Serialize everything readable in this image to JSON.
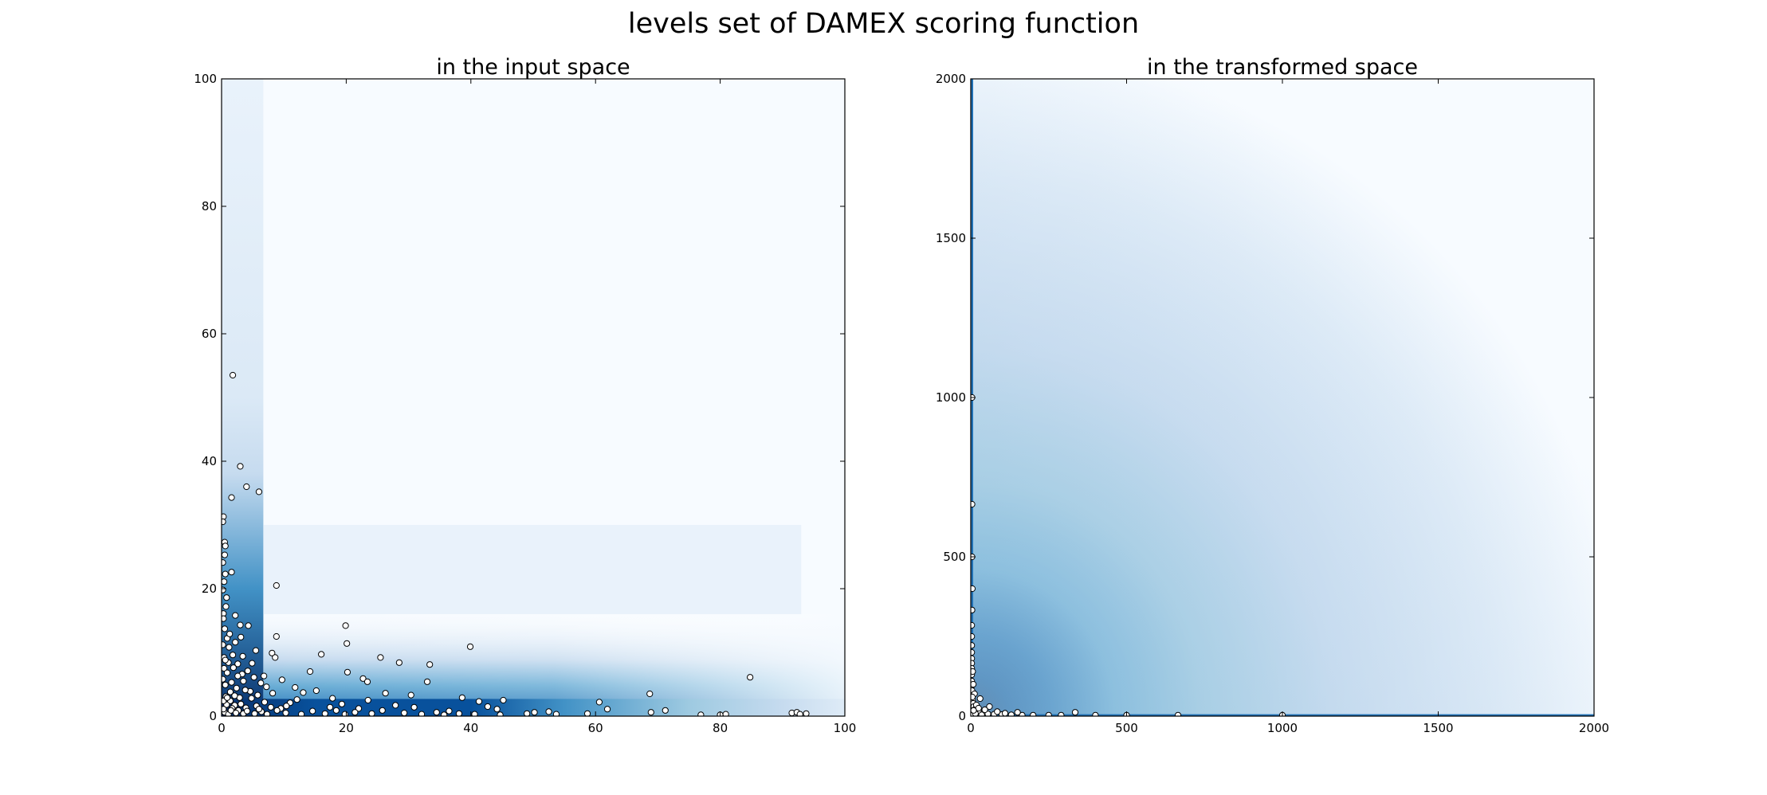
{
  "figure": {
    "suptitle": "levels set of DAMEX scoring function"
  },
  "chart_data": [
    {
      "type": "heatmap",
      "title": "in the input space",
      "xlabel": "",
      "ylabel": "",
      "xlim": [
        0,
        100
      ],
      "ylim": [
        0,
        100
      ],
      "xticks": [
        0,
        20,
        40,
        60,
        80,
        100
      ],
      "yticks": [
        0,
        20,
        40,
        60,
        80,
        100
      ],
      "colormap": "Blues",
      "colors": {
        "dark": "#08306b",
        "light": "#f7fbff",
        "marker_fill": "#ffffff",
        "marker_edge": "#000000"
      },
      "points": [
        [
          1.8,
          53.5
        ],
        [
          3,
          39.2
        ],
        [
          4,
          36
        ],
        [
          6,
          35.2
        ],
        [
          1.6,
          34.3
        ],
        [
          0.3,
          31.3
        ],
        [
          0.2,
          30.5
        ],
        [
          0.5,
          27.3
        ],
        [
          0.6,
          26.7
        ],
        [
          0.5,
          25.3
        ],
        [
          1.6,
          22.6
        ],
        [
          0.6,
          22.3
        ],
        [
          8.8,
          20.5
        ],
        [
          0.8,
          18.6
        ],
        [
          2.2,
          15.8
        ],
        [
          0.3,
          16.1
        ],
        [
          3,
          14.3
        ],
        [
          4.3,
          14.2
        ],
        [
          19.9,
          14.2
        ],
        [
          8.8,
          12.5
        ],
        [
          3.1,
          12.4
        ],
        [
          20.1,
          11.4
        ],
        [
          39.9,
          10.9
        ],
        [
          16,
          9.7
        ],
        [
          25.5,
          9.2
        ],
        [
          8.1,
          9.9
        ],
        [
          8.6,
          9.2
        ],
        [
          28.5,
          8.4
        ],
        [
          33.4,
          8.1
        ],
        [
          20.2,
          6.9
        ],
        [
          14.2,
          7
        ],
        [
          22.7,
          5.9
        ],
        [
          23.4,
          5.4
        ],
        [
          33,
          5.4
        ],
        [
          38.6,
          2.9
        ],
        [
          41.3,
          2.3
        ],
        [
          45.2,
          2.5
        ],
        [
          84.8,
          6.1
        ],
        [
          68.7,
          3.5
        ],
        [
          60.6,
          2.2
        ],
        [
          61.9,
          1.1
        ],
        [
          71.2,
          0.9
        ],
        [
          68.9,
          0.6
        ],
        [
          52.5,
          0.7
        ],
        [
          49,
          0.4
        ],
        [
          50.2,
          0.6
        ],
        [
          53.7,
          0.3
        ],
        [
          58.7,
          0.4
        ],
        [
          76.9,
          0.2
        ],
        [
          80,
          0.2
        ],
        [
          80.9,
          0.3
        ],
        [
          91.5,
          0.5
        ],
        [
          92.3,
          0.6
        ],
        [
          93.8,
          0.4
        ],
        [
          92.8,
          0.3
        ],
        [
          42.7,
          1.5
        ],
        [
          44.2,
          1.1
        ],
        [
          36.5,
          0.8
        ],
        [
          34.5,
          0.6
        ],
        [
          30.9,
          1.4
        ],
        [
          27.9,
          1.7
        ],
        [
          26.3,
          3.6
        ],
        [
          22,
          1.2
        ],
        [
          17.4,
          1.4
        ],
        [
          15.2,
          4
        ],
        [
          13.1,
          3.7
        ],
        [
          12.1,
          2.6
        ],
        [
          11,
          2.1
        ],
        [
          10.4,
          1.6
        ],
        [
          9.5,
          1.2
        ],
        [
          8.2,
          3.6
        ],
        [
          7.2,
          4.6
        ],
        [
          6.3,
          5.2
        ],
        [
          5.2,
          6.1
        ],
        [
          4.2,
          7.1
        ],
        [
          3.3,
          6.6
        ],
        [
          2.6,
          8.2
        ],
        [
          1.8,
          9.6
        ],
        [
          1.2,
          10.8
        ],
        [
          0.9,
          12.2
        ],
        [
          0.5,
          13.7
        ],
        [
          0.3,
          15.3
        ],
        [
          0.2,
          19.8
        ],
        [
          0.4,
          21.1
        ],
        [
          0.2,
          24.1
        ],
        [
          0.7,
          3.1
        ],
        [
          1.4,
          2.4
        ],
        [
          2.1,
          1.7
        ],
        [
          2.7,
          0.9
        ],
        [
          3.5,
          0.4
        ],
        [
          0.5,
          0.6
        ],
        [
          1.1,
          0.3
        ],
        [
          1.7,
          1.2
        ],
        [
          0.8,
          1.8
        ],
        [
          0.3,
          2.4
        ],
        [
          4.8,
          2.8
        ],
        [
          5.6,
          1.6
        ],
        [
          6.4,
          0.7
        ],
        [
          7.3,
          0.3
        ],
        [
          3.9,
          1.3
        ],
        [
          4.6,
          3.9
        ],
        [
          2.4,
          4.4
        ],
        [
          1.6,
          5.3
        ],
        [
          0.6,
          4.9
        ],
        [
          0.4,
          7.5
        ],
        [
          1.1,
          8.4
        ],
        [
          2.9,
          2.9
        ],
        [
          3.5,
          5.5
        ],
        [
          5.8,
          3.3
        ],
        [
          6.9,
          2.2
        ],
        [
          8.9,
          0.9
        ],
        [
          10.3,
          0.5
        ],
        [
          12.8,
          0.3
        ],
        [
          14.6,
          0.8
        ],
        [
          16.6,
          0.4
        ],
        [
          18.4,
          0.9
        ],
        [
          19.8,
          0.3
        ],
        [
          21.4,
          0.6
        ],
        [
          24.1,
          0.4
        ],
        [
          25.8,
          0.9
        ],
        [
          29.3,
          0.5
        ],
        [
          32.1,
          0.3
        ],
        [
          35.7,
          0.2
        ],
        [
          38.1,
          0.4
        ],
        [
          40.6,
          0.3
        ],
        [
          44.7,
          0.2
        ],
        [
          0.2,
          5.8
        ],
        [
          0.9,
          6.8
        ],
        [
          1.9,
          7.6
        ],
        [
          2.2,
          11.6
        ],
        [
          0.4,
          9.2
        ],
        [
          1.3,
          12.9
        ],
        [
          0.2,
          11.2
        ],
        [
          0.7,
          17.2
        ],
        [
          3.4,
          9.4
        ],
        [
          4.9,
          8.3
        ],
        [
          5.5,
          10.3
        ],
        [
          6.8,
          6.3
        ],
        [
          9.7,
          5.7
        ],
        [
          11.8,
          4.5
        ],
        [
          17.8,
          2.8
        ],
        [
          19.3,
          1.9
        ],
        [
          23.5,
          2.5
        ],
        [
          30.4,
          3.3
        ],
        [
          1.5,
          0.9
        ],
        [
          2.3,
          0.5
        ],
        [
          4.1,
          0.8
        ],
        [
          5.3,
          0.4
        ],
        [
          6,
          1.1
        ],
        [
          7.9,
          1.4
        ],
        [
          0.9,
          2.9
        ],
        [
          1.4,
          3.8
        ],
        [
          2.1,
          3.2
        ],
        [
          3.1,
          1.9
        ],
        [
          0.3,
          1.1
        ],
        [
          0.6,
          8.8
        ],
        [
          2.6,
          6.3
        ],
        [
          3.8,
          4.1
        ]
      ]
    },
    {
      "type": "heatmap",
      "title": "in the transformed space",
      "xlabel": "",
      "ylabel": "",
      "xlim": [
        0,
        2000
      ],
      "ylim": [
        0,
        2000
      ],
      "xticks": [
        0,
        500,
        1000,
        1500,
        2000
      ],
      "yticks": [
        0,
        500,
        1000,
        1500,
        2000
      ],
      "colormap": "Blues",
      "colors": {
        "dark": "#08306b",
        "light": "#f7fbff",
        "marker_fill": "#ffffff",
        "marker_edge": "#000000"
      },
      "points": [
        [
          4,
          1000
        ],
        [
          4,
          665
        ],
        [
          4,
          500
        ],
        [
          5,
          400
        ],
        [
          4,
          333
        ],
        [
          3,
          285
        ],
        [
          3,
          250
        ],
        [
          3,
          222
        ],
        [
          3,
          200
        ],
        [
          3,
          181
        ],
        [
          3,
          166
        ],
        [
          3,
          150
        ],
        [
          3,
          130
        ],
        [
          3,
          110
        ],
        [
          3,
          95
        ],
        [
          4,
          80
        ],
        [
          5,
          65
        ],
        [
          6,
          50
        ],
        [
          8,
          40
        ],
        [
          10,
          30
        ],
        [
          14,
          22
        ],
        [
          20,
          16
        ],
        [
          28,
          12
        ],
        [
          40,
          9
        ],
        [
          55,
          7
        ],
        [
          75,
          6
        ],
        [
          100,
          5
        ],
        [
          130,
          4
        ],
        [
          165,
          3
        ],
        [
          200,
          3
        ],
        [
          250,
          3
        ],
        [
          290,
          3
        ],
        [
          335,
          12
        ],
        [
          400,
          3
        ],
        [
          500,
          3
        ],
        [
          665,
          3
        ],
        [
          1000,
          3
        ],
        [
          60,
          30
        ],
        [
          30,
          55
        ],
        [
          45,
          20
        ],
        [
          18,
          35
        ],
        [
          12,
          70
        ],
        [
          8,
          100
        ],
        [
          150,
          12
        ],
        [
          110,
          9
        ],
        [
          85,
          14
        ],
        [
          25,
          25
        ],
        [
          6,
          140
        ],
        [
          5,
          60
        ],
        [
          10,
          10
        ],
        [
          2,
          5
        ],
        [
          5,
          3
        ],
        [
          15,
          8
        ],
        [
          35,
          4
        ],
        [
          9,
          18
        ]
      ]
    }
  ]
}
